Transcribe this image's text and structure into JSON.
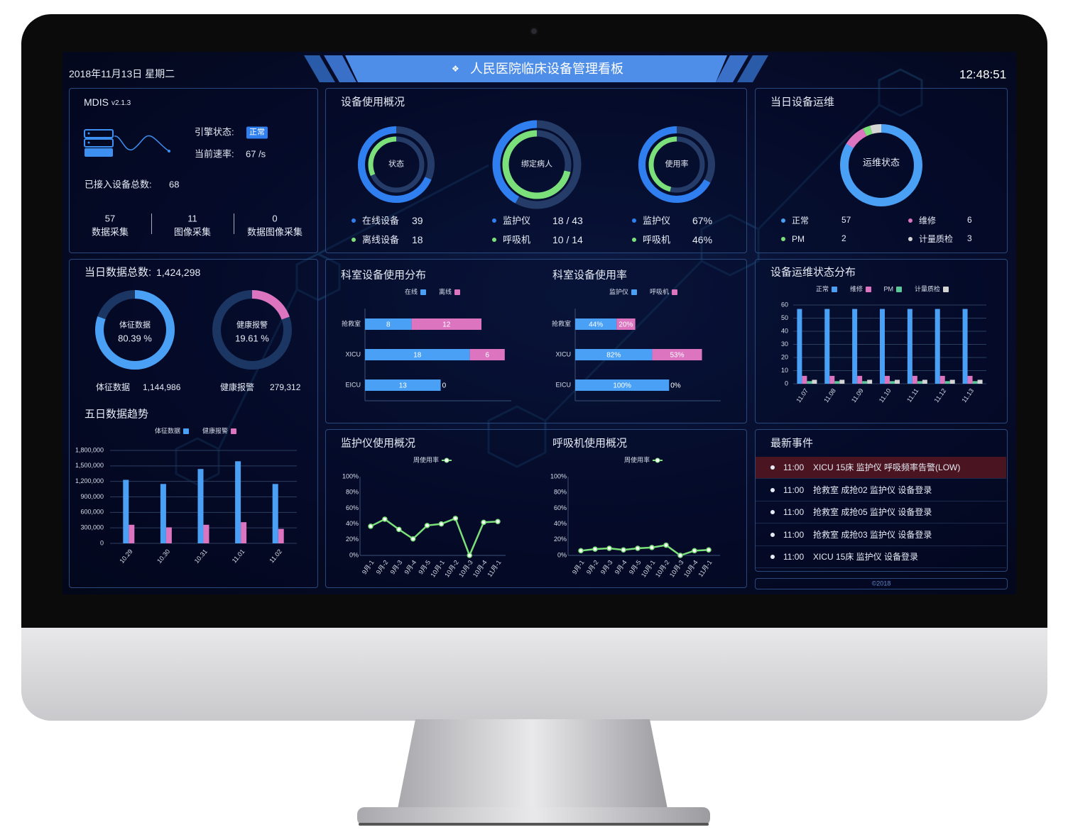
{
  "header": {
    "date": "2018年11月13日 星期二",
    "title": "人民医院临床设备管理看板",
    "title_icon": "network-icon",
    "clock": "12:48:51",
    "accent": "#4a8be8"
  },
  "system": {
    "app": "MDIS",
    "version": "v2.1.3",
    "engine_label": "引擎状态:",
    "engine_status": "正常",
    "rate_label": "当前速率:",
    "rate_value": "67 /s",
    "devices_label": "已接入设备总数:",
    "devices_value": "68",
    "stats": [
      {
        "value": "57",
        "label": "数据采集"
      },
      {
        "value": "11",
        "label": "图像采集"
      },
      {
        "value": "0",
        "label": "数据图像采集"
      }
    ]
  },
  "usage": {
    "title": "设备使用概况",
    "rings": [
      {
        "center": "状态",
        "items": [
          {
            "label": "在线设备",
            "value": "39",
            "fraction": 0.684
          },
          {
            "label": "离线设备",
            "value": "18",
            "fraction": 0.316
          }
        ]
      },
      {
        "center": "绑定病人",
        "items": [
          {
            "label": "监护仪",
            "value": "18 / 43",
            "fraction": 0.419
          },
          {
            "label": "呼吸机",
            "value": "10 / 14",
            "fraction": 0.714
          }
        ]
      },
      {
        "center": "使用率",
        "items": [
          {
            "label": "监护仪",
            "value": "67%",
            "fraction": 0.67
          },
          {
            "label": "呼吸机",
            "value": "46%",
            "fraction": 0.46
          }
        ]
      }
    ],
    "colors": {
      "outer": "#2f7ff0",
      "inner": "#7be07a",
      "track": "#263c68"
    }
  },
  "maintenance": {
    "title": "当日设备运维",
    "center": "运维状态",
    "items": [
      {
        "label": "正常",
        "value": 57,
        "color": "#4aa0f5"
      },
      {
        "label": "维修",
        "value": 6,
        "color": "#dd74c0"
      },
      {
        "label": "PM",
        "value": 2,
        "color": "#7be07a"
      },
      {
        "label": "计量质检",
        "value": 3,
        "color": "#d4d4d4"
      }
    ]
  },
  "daily": {
    "title": "当日数据总数:",
    "total": "1,424,298",
    "donuts": [
      {
        "label": "体征数据",
        "percent": "80.39 %",
        "fraction": 0.8039,
        "count": "1,144,986",
        "color": "#4aa0f5"
      },
      {
        "label": "健康报警",
        "percent": "19.61 %",
        "fraction": 0.1961,
        "count": "279,312",
        "color": "#dd74c0"
      }
    ],
    "track": "#1c3664"
  },
  "events": {
    "title": "最新事件",
    "items": [
      {
        "time": "11:00",
        "text": "XICU 15床 监护仪 呼吸频率告警(LOW)",
        "alert": true
      },
      {
        "time": "11:00",
        "text": "抢救室 成抢02 监护仪 设备登录",
        "alert": false
      },
      {
        "time": "11:00",
        "text": "抢救室 成抢05 监护仪 设备登录",
        "alert": false
      },
      {
        "time": "11:00",
        "text": "抢救室 成抢03 监护仪 设备登录",
        "alert": false
      },
      {
        "time": "11:00",
        "text": "XICU 15床 监护仪 设备登录",
        "alert": false
      }
    ],
    "alert_color": "#4a1520"
  },
  "footer": {
    "copyright": "©2018"
  },
  "chart_data": [
    {
      "type": "bar",
      "title": "五日数据趋势",
      "categories": [
        "10.29",
        "10.30",
        "10.31",
        "11.01",
        "11.02"
      ],
      "series": [
        {
          "name": "体征数据",
          "values": [
            1230000,
            1150000,
            1440000,
            1590000,
            1150000
          ],
          "color": "#4aa0f5"
        },
        {
          "name": "健康报警",
          "values": [
            360000,
            310000,
            360000,
            410000,
            280000
          ],
          "color": "#dd74c0"
        }
      ],
      "ylim": [
        0,
        1800000
      ],
      "yticks": [
        "0",
        "300,000",
        "600,000",
        "900,000",
        "1,200,000",
        "1,500,000",
        "1,800,000"
      ],
      "grid": true,
      "legend": "top-center"
    },
    {
      "type": "bar",
      "orientation": "horizontal",
      "stacked": true,
      "title": "科室设备使用分布",
      "categories": [
        "抢救室",
        "XICU",
        "EICU"
      ],
      "series": [
        {
          "name": "在线",
          "values": [
            8,
            18,
            13
          ],
          "labels": [
            "8",
            "18",
            "13"
          ],
          "color": "#4aa0f5"
        },
        {
          "name": "离线",
          "values": [
            12,
            6,
            0
          ],
          "labels": [
            "12",
            "6",
            "0"
          ],
          "color": "#dd74c0"
        }
      ],
      "xlim": [
        0,
        25
      ],
      "legend": "top-center"
    },
    {
      "type": "bar",
      "orientation": "horizontal",
      "stacked": true,
      "title": "科室设备使用率",
      "categories": [
        "抢救室",
        "XICU",
        "EICU"
      ],
      "series": [
        {
          "name": "监护仪",
          "values": [
            44,
            82,
            100
          ],
          "labels": [
            "44%",
            "82%",
            "100%"
          ],
          "color": "#4aa0f5"
        },
        {
          "name": "呼吸机",
          "values": [
            20,
            53,
            0
          ],
          "labels": [
            "20%",
            "53%",
            "0%"
          ],
          "color": "#dd74c0"
        }
      ],
      "xlim": [
        0,
        155
      ],
      "legend": "top-center"
    },
    {
      "type": "bar",
      "title": "设备运维状态分布",
      "categories": [
        "11.07",
        "11.08",
        "11.09",
        "11.10",
        "11.11",
        "11.12",
        "11.13"
      ],
      "series": [
        {
          "name": "正常",
          "values": [
            57,
            57,
            57,
            57,
            57,
            57,
            57
          ],
          "color": "#4aa0f5"
        },
        {
          "name": "维修",
          "values": [
            6,
            6,
            6,
            6,
            6,
            6,
            6
          ],
          "color": "#dd74c0"
        },
        {
          "name": "PM",
          "values": [
            2,
            2,
            2,
            2,
            2,
            2,
            2
          ],
          "color": "#5cc79a"
        },
        {
          "name": "计量质检",
          "values": [
            3,
            3,
            3,
            3,
            3,
            3,
            3
          ],
          "color": "#d4d4d4"
        }
      ],
      "ylim": [
        0,
        60
      ],
      "yticks": [
        "0",
        "10",
        "20",
        "30",
        "40",
        "50",
        "60"
      ],
      "grid": true,
      "legend": "top-center"
    },
    {
      "type": "line",
      "title": "监护仪使用概况",
      "categories": [
        "9月-1",
        "9月-2",
        "9月-3",
        "9月-4",
        "9月-5",
        "10月-1",
        "10月-2",
        "10月-3",
        "10月-4",
        "11月-1"
      ],
      "series": [
        {
          "name": "周使用率",
          "values": [
            37,
            46,
            33,
            21,
            38,
            40,
            47,
            0,
            42,
            43
          ],
          "color": "#7be07a"
        }
      ],
      "ylim": [
        0,
        100
      ],
      "yticks": [
        "0%",
        "20%",
        "40%",
        "60%",
        "80%",
        "100%"
      ],
      "legend": "top-center"
    },
    {
      "type": "line",
      "title": "呼吸机使用概况",
      "categories": [
        "9月-1",
        "9月-2",
        "9月-3",
        "9月-4",
        "9月-5",
        "10月-1",
        "10月-2",
        "10月-3",
        "10月-4",
        "11月-1"
      ],
      "series": [
        {
          "name": "周使用率",
          "values": [
            6,
            8,
            9,
            7,
            9,
            10,
            13,
            0,
            6,
            7
          ],
          "color": "#7be07a"
        }
      ],
      "ylim": [
        0,
        100
      ],
      "yticks": [
        "0%",
        "20%",
        "40%",
        "60%",
        "80%",
        "100%"
      ],
      "legend": "top-center"
    }
  ]
}
